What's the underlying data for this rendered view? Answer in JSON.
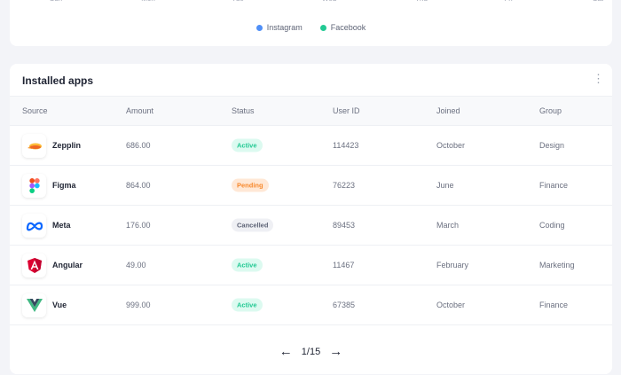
{
  "chart": {
    "days": [
      "Sun",
      "Mon",
      "Tue",
      "Wed",
      "Thu",
      "Fri",
      "Sat"
    ],
    "legend": [
      {
        "label": "Instagram",
        "color": "#4f8ff7"
      },
      {
        "label": "Facebook",
        "color": "#22c993"
      }
    ]
  },
  "apps": {
    "title": "Installed apps",
    "menu_icon": "vertical-dots-icon",
    "columns": [
      "Source",
      "Amount",
      "Status",
      "User ID",
      "Joined",
      "Group"
    ],
    "rows": [
      {
        "source": "Zepplin",
        "icon": "zeplin-logo-icon",
        "amount": "686.00",
        "status": "Active",
        "user_id": "114423",
        "joined": "October",
        "group": "Design"
      },
      {
        "source": "Figma",
        "icon": "figma-logo-icon",
        "amount": "864.00",
        "status": "Pending",
        "user_id": "76223",
        "joined": "June",
        "group": "Finance"
      },
      {
        "source": "Meta",
        "icon": "meta-logo-icon",
        "amount": "176.00",
        "status": "Cancelled",
        "user_id": "89453",
        "joined": "March",
        "group": "Coding"
      },
      {
        "source": "Angular",
        "icon": "angular-logo-icon",
        "amount": "49.00",
        "status": "Active",
        "user_id": "11467",
        "joined": "February",
        "group": "Marketing"
      },
      {
        "source": "Vue",
        "icon": "vue-logo-icon",
        "amount": "999.00",
        "status": "Active",
        "user_id": "67385",
        "joined": "October",
        "group": "Finance"
      }
    ],
    "status_colors": {
      "Active": {
        "bg": "#dcfaf0",
        "fg": "#22c993"
      },
      "Pending": {
        "bg": "#ffe8d6",
        "fg": "#f7892d"
      },
      "Cancelled": {
        "bg": "#eff0f4",
        "fg": "#5f6577"
      }
    },
    "pagination": {
      "label": "1/15"
    }
  }
}
